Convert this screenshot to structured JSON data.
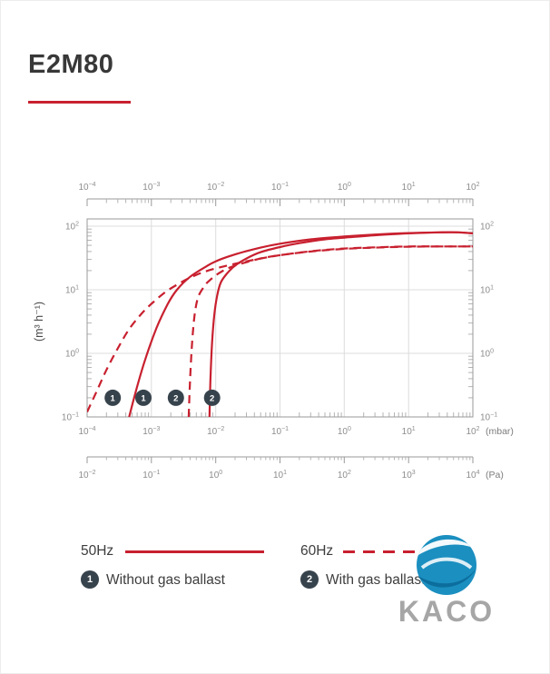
{
  "page": {
    "title": "E2M80"
  },
  "chart_data": {
    "type": "line",
    "grid": true,
    "curve_color": "#c8202f",
    "marker_color": "#37434c",
    "x_axis": {
      "scale": "log",
      "unit_primary": "(mbar)",
      "unit_secondary": "(Pa)",
      "range_mbar_exponents": [
        -4,
        2
      ],
      "mbar_tick_exponents": [
        -4,
        -3,
        -2,
        -1,
        0,
        1,
        2
      ],
      "pa_tick_exponents": [
        -2,
        -1,
        0,
        1,
        2,
        3,
        4
      ]
    },
    "y_axis": {
      "scale": "log",
      "label": "(m³ h⁻¹)",
      "range_exponents": [
        -1,
        2
      ],
      "tick_exponents": [
        -1,
        0,
        1,
        2
      ]
    },
    "series": [
      {
        "id": "s50-no-ballast",
        "name": "50Hz without gas ballast",
        "line": "solid",
        "marker": "1",
        "points": [
          [
            0.00045,
            0.1
          ],
          [
            0.0006,
            0.3
          ],
          [
            0.0008,
            0.8
          ],
          [
            0.0012,
            2.5
          ],
          [
            0.0018,
            6
          ],
          [
            0.0025,
            10
          ],
          [
            0.004,
            16
          ],
          [
            0.007,
            23
          ],
          [
            0.01,
            28
          ],
          [
            0.02,
            36
          ],
          [
            0.05,
            46
          ],
          [
            0.1,
            53
          ],
          [
            0.3,
            62
          ],
          [
            1,
            69
          ],
          [
            3,
            74
          ],
          [
            10,
            78
          ],
          [
            30,
            80
          ],
          [
            60,
            80
          ],
          [
            100,
            77
          ]
        ]
      },
      {
        "id": "s60-no-ballast",
        "name": "60Hz without gas ballast",
        "line": "dashed",
        "marker": "1",
        "points": [
          [
            0.0001,
            0.12
          ],
          [
            0.00014,
            0.25
          ],
          [
            0.0002,
            0.55
          ],
          [
            0.0003,
            1.2
          ],
          [
            0.00045,
            2.4
          ],
          [
            0.0007,
            4.2
          ],
          [
            0.001,
            6
          ],
          [
            0.0016,
            9
          ],
          [
            0.0025,
            12
          ],
          [
            0.004,
            15.5
          ],
          [
            0.007,
            19.5
          ],
          [
            0.015,
            24
          ],
          [
            0.03,
            28
          ],
          [
            0.07,
            33
          ],
          [
            0.15,
            37
          ],
          [
            0.4,
            41.5
          ],
          [
            1,
            44.5
          ],
          [
            3,
            46.5
          ],
          [
            10,
            48
          ],
          [
            30,
            48
          ],
          [
            100,
            48
          ]
        ]
      },
      {
        "id": "s50-gas-ballast",
        "name": "50Hz with gas ballast",
        "line": "solid",
        "marker": "2",
        "points": [
          [
            0.008,
            0.1
          ],
          [
            0.0083,
            0.4
          ],
          [
            0.0088,
            1.5
          ],
          [
            0.0095,
            4
          ],
          [
            0.0105,
            8
          ],
          [
            0.012,
            13
          ],
          [
            0.015,
            18
          ],
          [
            0.02,
            24
          ],
          [
            0.03,
            31
          ],
          [
            0.05,
            39
          ],
          [
            0.1,
            47
          ],
          [
            0.2,
            54
          ],
          [
            0.5,
            62
          ],
          [
            1,
            66
          ],
          [
            3,
            72
          ],
          [
            10,
            77
          ],
          [
            30,
            80
          ],
          [
            60,
            80
          ],
          [
            100,
            77
          ]
        ]
      },
      {
        "id": "s60-gas-ballast",
        "name": "60Hz with gas ballast",
        "line": "dashed",
        "marker": "2",
        "points": [
          [
            0.0038,
            0.1
          ],
          [
            0.004,
            0.4
          ],
          [
            0.0043,
            1.5
          ],
          [
            0.0047,
            4
          ],
          [
            0.0053,
            7.5
          ],
          [
            0.0065,
            11
          ],
          [
            0.008,
            14
          ],
          [
            0.012,
            19
          ],
          [
            0.02,
            24
          ],
          [
            0.05,
            31
          ],
          [
            0.1,
            35
          ],
          [
            0.3,
            40
          ],
          [
            1,
            44
          ],
          [
            3,
            46
          ],
          [
            10,
            47.5
          ],
          [
            30,
            48
          ],
          [
            100,
            48
          ]
        ]
      }
    ],
    "markers": [
      {
        "label": "1",
        "mbar": 0.00025,
        "speed": 0.2
      },
      {
        "label": "1",
        "mbar": 0.00075,
        "speed": 0.2
      },
      {
        "label": "2",
        "mbar": 0.0024,
        "speed": 0.2
      },
      {
        "label": "2",
        "mbar": 0.0088,
        "speed": 0.2
      }
    ]
  },
  "legend": {
    "freq_50": "50Hz",
    "freq_60": "60Hz",
    "marker1_label": "1",
    "marker1_text": "Without gas ballast",
    "marker2_label": "2",
    "marker2_text": "With gas ballast"
  },
  "logo": {
    "text": "KACO"
  }
}
